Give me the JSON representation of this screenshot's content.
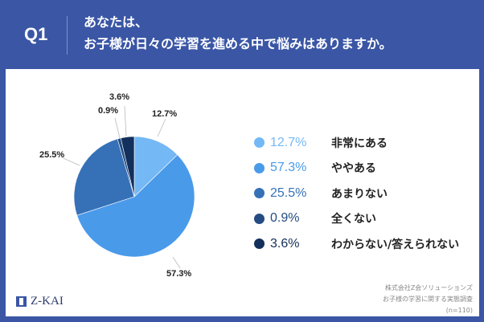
{
  "header": {
    "q_label": "Q1",
    "title_line1": "あなたは、",
    "title_line2": "お子様が日々の学習を進める中で悩みはありますか。"
  },
  "chart_data": {
    "type": "pie",
    "title": "あなたは、お子様が日々の学習を進める中で悩みはありますか。",
    "categories": [
      "非常にある",
      "ややある",
      "あまりない",
      "全くない",
      "わからない/答えられない"
    ],
    "values": [
      12.7,
      57.3,
      25.5,
      0.9,
      3.6
    ],
    "colors": [
      "#74b8f5",
      "#4a9aea",
      "#3671b7",
      "#244c83",
      "#132f5c"
    ],
    "legend_position": "right",
    "n": 110
  },
  "legend": [
    {
      "pct": "12.7%",
      "label": "非常にある",
      "color": "#74b8f5"
    },
    {
      "pct": "57.3%",
      "label": "ややある",
      "color": "#4a9aea"
    },
    {
      "pct": "25.5%",
      "label": "あまりない",
      "color": "#3671b7"
    },
    {
      "pct": "0.9%",
      "label": "全くない",
      "color": "#244c83"
    },
    {
      "pct": "3.6%",
      "label": "わからない/答えられない",
      "color": "#132f5c"
    }
  ],
  "pie_labels": {
    "a": "12.7%",
    "b": "57.3%",
    "c": "25.5%",
    "d": "0.9%",
    "e": "3.6%"
  },
  "footer": {
    "logo": "Z-KAI",
    "source_line1": "株式会社Z会ソリューションズ",
    "source_line2": "お子様の学習に関する実態調査",
    "source_line3": "(n=110)"
  }
}
